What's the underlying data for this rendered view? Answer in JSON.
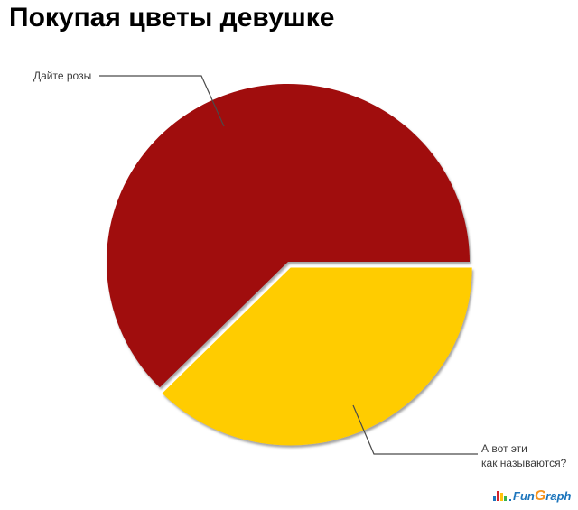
{
  "title": "Покупая цветы девушке",
  "chart_data": {
    "type": "pie",
    "title": "Покупая цветы девушке",
    "slices": [
      {
        "label": "Дайте розы",
        "value": 62.5,
        "color": "#A00B0D",
        "exploded": false
      },
      {
        "label": "А вот эти как называются?",
        "value": 37.5,
        "color": "#FFCC00",
        "exploded": true
      }
    ],
    "legend_position": "none",
    "data_labels": "callout-lines",
    "start_angle_deg": 0,
    "direction": "counterclockwise"
  },
  "callouts": {
    "roses": "Дайте розы",
    "other_line1": "А вот эти",
    "other_line2": "как называются?"
  },
  "watermark": {
    "icon": "bar-chart-icon",
    "text_fun": "Fun",
    "text_g": "G",
    "text_raph": "raph",
    "colors": {
      "blue": "#1C75BC",
      "orange": "#F7941E",
      "bar_red": "#D2232A",
      "bar_yellow": "#FFC20E",
      "bar_green": "#39B54A"
    }
  },
  "colors": {
    "background": "#FFFFFF",
    "title_text": "#000000",
    "label_text": "#3C3C3C",
    "leader_line": "#4A4A4A"
  }
}
